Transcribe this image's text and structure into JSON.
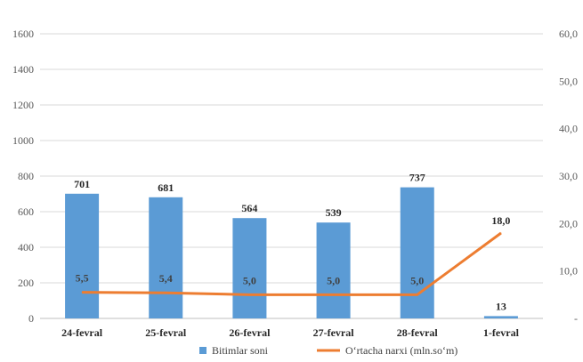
{
  "chart_data": {
    "type": "bar",
    "categories": [
      "24-fevral",
      "25-fevral",
      "26-fevral",
      "27-fevral",
      "28-fevral",
      "1-fevral"
    ],
    "series": [
      {
        "name": "Bitimlar soni",
        "type": "bar",
        "axis": "left",
        "color": "#5b9bd5",
        "values": [
          701,
          681,
          564,
          539,
          737,
          13
        ],
        "labels": [
          "701",
          "681",
          "564",
          "539",
          "737",
          "13"
        ]
      },
      {
        "name": "O‘rtacha narxi (mln.so‘m)",
        "type": "line",
        "axis": "right",
        "color": "#ed7d31",
        "values": [
          5.5,
          5.4,
          5.0,
          5.0,
          5.0,
          18.0
        ],
        "labels": [
          "5,5",
          "5,4",
          "5,0",
          "5,0",
          "5,0",
          "18,0"
        ]
      }
    ],
    "y_left": {
      "ylim": [
        0,
        1600
      ],
      "ticks": [
        0,
        200,
        400,
        600,
        800,
        1000,
        1200,
        1400,
        1600
      ],
      "tick_labels": [
        "0",
        "200",
        "400",
        "600",
        "800",
        "1000",
        "1200",
        "1400",
        "1600"
      ]
    },
    "y_right": {
      "ylim": [
        0,
        60
      ],
      "ticks": [
        0,
        10,
        20,
        30,
        40,
        50,
        60
      ],
      "tick_labels": [
        "-",
        "10,0",
        "20,0",
        "30,0",
        "40,0",
        "50,0",
        "60,0"
      ]
    },
    "grid": true,
    "legend": "bottom",
    "title": "",
    "xlabel": "",
    "ylabel": ""
  }
}
